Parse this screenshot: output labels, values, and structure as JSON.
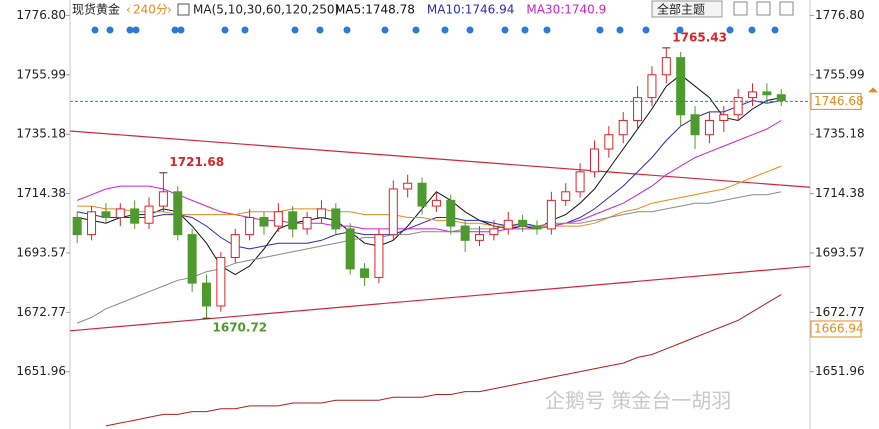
{
  "chart_data": {
    "type": "candlestick",
    "symbol": "现货黄金",
    "period": "240分",
    "indicator": "MA(5,10,30,60,120,250)",
    "theme_button": "全部主题",
    "watermark": "企鹅号 策金台一胡羽",
    "xlim": [
      -0.5,
      51
    ],
    "ylim": [
      1631.9,
      1782.2
    ],
    "yticks": [
      {
        "value": 1776.8,
        "label": "1776.80"
      },
      1755.99,
      1735.18,
      1714.38,
      1693.57,
      1672.77,
      1651.96
    ],
    "up_color": "#d8232a",
    "down_color": "#4f9a2e",
    "candles": {
      "open": [
        1706,
        1700,
        1708,
        1706,
        1709,
        1704,
        1710,
        1715,
        1700,
        1683,
        1675,
        1692,
        1700,
        1706,
        1703,
        1708,
        1702,
        1706,
        1709,
        1702,
        1688,
        1685,
        1700,
        1716,
        1718,
        1710,
        1712,
        1703,
        1698,
        1700,
        1702,
        1705,
        1703,
        1702,
        1712,
        1715,
        1722,
        1730,
        1735,
        1740,
        1748,
        1756,
        1762,
        1742,
        1735,
        1740,
        1742,
        1748,
        1750,
        1749
      ],
      "high": [
        1708,
        1710,
        1711,
        1711,
        1712,
        1713,
        1721.68,
        1717,
        1702,
        1686,
        1694,
        1702,
        1709,
        1708,
        1711,
        1710,
        1708,
        1712,
        1711,
        1704,
        1690,
        1702,
        1719,
        1721,
        1720,
        1715,
        1714,
        1705,
        1703,
        1705,
        1708,
        1707,
        1705,
        1715,
        1718,
        1725,
        1733,
        1738,
        1743,
        1752,
        1759,
        1765.43,
        1764,
        1745,
        1743,
        1745,
        1751,
        1753,
        1753,
        1751
      ],
      "low": [
        1697,
        1698,
        1704,
        1703,
        1702,
        1702,
        1708,
        1698,
        1680,
        1670.72,
        1673,
        1690,
        1698,
        1700,
        1701,
        1699,
        1700,
        1704,
        1700,
        1686,
        1682,
        1683,
        1698,
        1713,
        1707,
        1708,
        1700,
        1694,
        1696,
        1698,
        1700,
        1701,
        1700,
        1700,
        1710,
        1713,
        1720,
        1727,
        1732,
        1737,
        1745,
        1753,
        1738,
        1730,
        1732,
        1736,
        1740,
        1745,
        1746,
        1745
      ],
      "close": [
        1700,
        1708,
        1706,
        1709,
        1704,
        1710,
        1715,
        1700,
        1683,
        1675,
        1692,
        1700,
        1706,
        1703,
        1708,
        1702,
        1706,
        1709,
        1702,
        1688,
        1685,
        1700,
        1716,
        1718,
        1710,
        1712,
        1703,
        1698,
        1700,
        1702,
        1705,
        1703,
        1702,
        1712,
        1715,
        1722,
        1730,
        1735,
        1740,
        1748,
        1756,
        1762,
        1742,
        1735,
        1740,
        1742,
        1748,
        1750,
        1749,
        1747
      ]
    },
    "series": [
      {
        "name": "MA5:1748.78",
        "color": "#111111",
        "values": [
          1706,
          1705,
          1704,
          1706,
          1707,
          1707,
          1709,
          1708,
          1703,
          1697,
          1689,
          1686,
          1689,
          1695,
          1702,
          1704,
          1705,
          1706,
          1705,
          1701,
          1697,
          1696,
          1698,
          1703,
          1709,
          1715,
          1712,
          1708,
          1705,
          1703,
          1702,
          1703,
          1702,
          1705,
          1707,
          1711,
          1716,
          1723,
          1730,
          1737,
          1744,
          1752,
          1756,
          1752,
          1748,
          1741,
          1740,
          1744,
          1747,
          1748
        ]
      },
      {
        "name": "MA10:1746.94",
        "color": "#2b2bb8",
        "values": [
          1708,
          1707,
          1706,
          1706,
          1706,
          1706,
          1707,
          1707,
          1706,
          1703,
          1699,
          1696,
          1695,
          1696,
          1697,
          1697,
          1697,
          1698,
          1700,
          1701,
          1700,
          1700,
          1700,
          1702,
          1704,
          1706,
          1706,
          1705,
          1705,
          1704,
          1703,
          1704,
          1703,
          1703,
          1704,
          1706,
          1709,
          1713,
          1717,
          1722,
          1727,
          1733,
          1738,
          1741,
          1743,
          1743,
          1745,
          1747,
          1746,
          1747
        ]
      },
      {
        "name": "MA30:1740.9",
        "color": "#cc22cc",
        "values": [
          1712,
          1714,
          1716,
          1717,
          1717,
          1717,
          1716,
          1714,
          1712,
          1710,
          1708,
          1707,
          1706,
          1705,
          1705,
          1704,
          1704,
          1704,
          1703,
          1703,
          1702,
          1702,
          1702,
          1702,
          1702,
          1702,
          1701,
          1701,
          1701,
          1701,
          1702,
          1702,
          1702,
          1703,
          1704,
          1705,
          1707,
          1709,
          1711,
          1714,
          1717,
          1721,
          1724,
          1727,
          1729,
          1731,
          1733,
          1735,
          1737,
          1740
        ]
      },
      {
        "color": "#e38b1c",
        "values": [
          1710,
          1710,
          1709,
          1709,
          1708,
          1708,
          1708,
          1707,
          1707,
          1707,
          1707,
          1707,
          1708,
          1708,
          1708,
          1709,
          1709,
          1709,
          1708,
          1708,
          1707,
          1707,
          1707,
          1706,
          1706,
          1705,
          1705,
          1704,
          1704,
          1703,
          1703,
          1703,
          1703,
          1703,
          1703,
          1703,
          1704,
          1706,
          1708,
          1709,
          1711,
          1712,
          1713,
          1714,
          1715,
          1716,
          1718,
          1720,
          1722,
          1724
        ]
      },
      {
        "color": "#8a8a8a",
        "values": [
          1669,
          1671,
          1674,
          1676,
          1678,
          1680,
          1682,
          1684,
          1685,
          1687,
          1688,
          1690,
          1691,
          1692,
          1693,
          1694,
          1695,
          1696,
          1697,
          1698,
          1699,
          1699,
          1700,
          1700,
          1701,
          1701,
          1701,
          1702,
          1702,
          1702,
          1703,
          1703,
          1703,
          1704,
          1704,
          1704,
          1705,
          1706,
          1707,
          1708,
          1708,
          1709,
          1710,
          1711,
          1711,
          1712,
          1713,
          1714,
          1714,
          1715
        ]
      },
      {
        "color": "#b01e1e",
        "values": [
          null,
          null,
          1633,
          1634,
          1635,
          1636,
          1637,
          1637,
          1638,
          1638,
          1639,
          1639,
          1640,
          1640,
          1640,
          1641,
          1641,
          1641,
          1642,
          1642,
          1642,
          1642,
          1643,
          1643,
          1643,
          1644,
          1644,
          1645,
          1645,
          1646,
          1647,
          1648,
          1649,
          1650,
          1651,
          1652,
          1653,
          1654,
          1655,
          1657,
          1658,
          1660,
          1662,
          1664,
          1666,
          1668,
          1670,
          1673,
          1676,
          1679
        ]
      }
    ],
    "trendlines": [
      {
        "color": "#d0283a",
        "start": [
          -0.5,
          1736.3
        ],
        "end": [
          51,
          1716.6
        ]
      },
      {
        "color": "#d0283a",
        "start": [
          -0.5,
          1666.3
        ],
        "end": [
          51,
          1688.9
        ]
      }
    ],
    "last_price": 1746.68,
    "marker_price": 1666.94,
    "price_label_color": "#e38b1c",
    "annotations": [
      {
        "index": 41,
        "field": "high"
      },
      {
        "index": 6,
        "field": "high"
      },
      {
        "index": 9,
        "field": "low"
      }
    ]
  }
}
